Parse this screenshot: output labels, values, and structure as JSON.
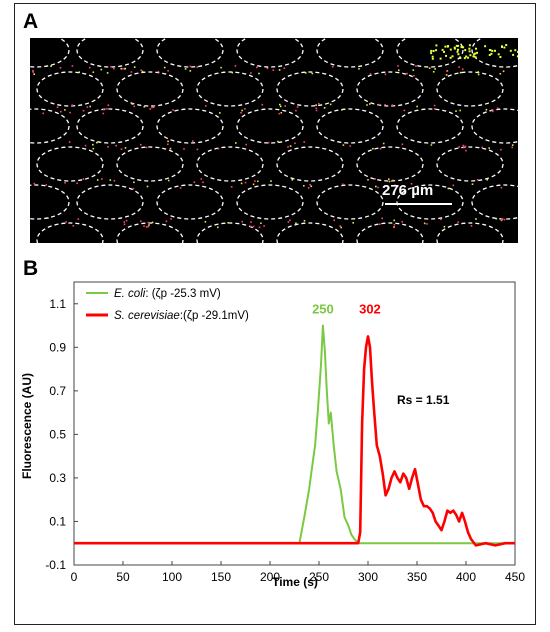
{
  "panels": {
    "a_label": "A",
    "b_label": "B"
  },
  "micrograph": {
    "scale_bar_label": "276 µm",
    "background": "#000000",
    "outline_color": "#ffffff"
  },
  "colors": {
    "series_1": "#7ac943",
    "series_2": "#ff0000"
  },
  "chart_data": {
    "type": "line",
    "xlabel": "Time (s)",
    "ylabel": "Fluorescence (AU)",
    "xlim": [
      0,
      450
    ],
    "ylim": [
      -0.1,
      1.2
    ],
    "x_ticks": [
      0,
      50,
      100,
      150,
      200,
      250,
      300,
      350,
      400,
      450
    ],
    "y_ticks": [
      -0.1,
      0.1,
      0.3,
      0.5,
      0.7,
      0.9,
      1.1
    ],
    "y_tick_labels": [
      "-0.1",
      "0.1",
      "0.3",
      "0.5",
      "0.7",
      "0.9",
      "1.1"
    ],
    "grid": false,
    "legend_position": "top-left",
    "series": [
      {
        "name": "E. coli",
        "legend_suffix": ":  (ζp -25.3 mV)",
        "color": "#7ac943",
        "peak_label": "250",
        "x": [
          0,
          50,
          100,
          150,
          200,
          230,
          235,
          240,
          243,
          246,
          249,
          252,
          254,
          256,
          258,
          260,
          262,
          265,
          268,
          272,
          276,
          280,
          283,
          286,
          290,
          300,
          350,
          400,
          450
        ],
        "y": [
          0.0,
          0.0,
          0.0,
          0.0,
          0.0,
          0.0,
          0.12,
          0.25,
          0.35,
          0.45,
          0.62,
          0.82,
          1.0,
          0.88,
          0.7,
          0.55,
          0.6,
          0.45,
          0.33,
          0.25,
          0.12,
          0.08,
          0.04,
          0.02,
          0.0,
          0.0,
          0.0,
          0.0,
          0.0
        ]
      },
      {
        "name": "S. cerevisiae",
        "legend_suffix": ":(ζp -29.1mV)",
        "color": "#ff0000",
        "peak_label": "302",
        "x": [
          0,
          50,
          100,
          150,
          200,
          250,
          285,
          290,
          292,
          294,
          296,
          298,
          300,
          302,
          304,
          306,
          309,
          312,
          315,
          318,
          321,
          324,
          327,
          330,
          333,
          336,
          339,
          342,
          345,
          348,
          351,
          354,
          357,
          360,
          363,
          366,
          369,
          372,
          375,
          378,
          381,
          384,
          387,
          390,
          393,
          396,
          399,
          402,
          405,
          410,
          420,
          430,
          440,
          450
        ],
        "y": [
          0.0,
          0.0,
          0.0,
          0.0,
          0.0,
          0.0,
          0.0,
          0.0,
          0.05,
          0.55,
          0.8,
          0.9,
          0.95,
          0.9,
          0.75,
          0.62,
          0.45,
          0.4,
          0.32,
          0.22,
          0.25,
          0.3,
          0.33,
          0.3,
          0.28,
          0.32,
          0.3,
          0.25,
          0.3,
          0.34,
          0.27,
          0.2,
          0.17,
          0.17,
          0.16,
          0.14,
          0.1,
          0.08,
          0.06,
          0.1,
          0.15,
          0.14,
          0.15,
          0.13,
          0.1,
          0.14,
          0.1,
          0.05,
          0.02,
          -0.01,
          0.0,
          -0.01,
          0.0,
          0.0
        ]
      }
    ],
    "annotations": [
      "Rs = 1.51"
    ]
  }
}
